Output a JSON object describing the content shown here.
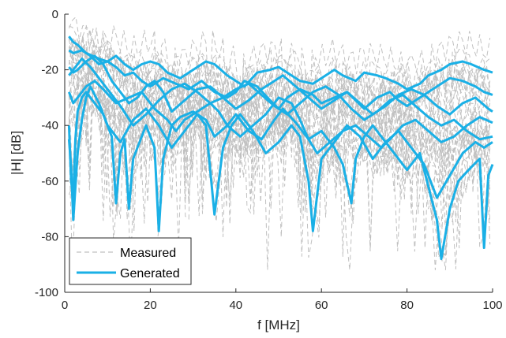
{
  "chart_data": {
    "type": "line",
    "title": "",
    "xlabel": "f [MHz]",
    "ylabel": "|H| [dB]",
    "xlim": [
      0,
      100
    ],
    "ylim": [
      -100,
      0
    ],
    "xticks": [
      0,
      20,
      40,
      60,
      80,
      100
    ],
    "yticks": [
      0,
      -20,
      -40,
      -60,
      -80,
      -100
    ],
    "xtick_labels": [
      "0",
      "20",
      "40",
      "60",
      "80",
      "100"
    ],
    "ytick_labels": [
      "0",
      "-20",
      "-40",
      "-60",
      "-80",
      "-100"
    ],
    "grid": false,
    "legend": {
      "position": "bottom-left",
      "entries": [
        {
          "label": "Measured",
          "style": "dashed",
          "color": "#c0c0c0"
        },
        {
          "label": "Generated",
          "style": "solid",
          "color": "#1ab0e6"
        }
      ]
    },
    "series": [
      {
        "group": "Generated",
        "color": "#1ab0e6",
        "x": [
          1,
          2,
          3,
          5,
          8,
          10,
          12,
          14,
          16,
          18,
          20,
          22,
          24,
          27,
          30,
          33,
          35,
          38,
          40,
          42,
          45,
          48,
          50,
          53,
          55,
          58,
          60,
          63,
          65,
          68,
          70,
          73,
          75,
          78,
          80,
          83,
          85,
          88,
          90,
          93,
          95,
          98,
          100
        ],
        "y": [
          -8,
          -10,
          -11,
          -14,
          -16,
          -17,
          -15,
          -18,
          -20,
          -18,
          -17,
          -18,
          -21,
          -23,
          -20,
          -17,
          -18,
          -22,
          -24,
          -26,
          -21,
          -20,
          -19,
          -22,
          -24,
          -25,
          -23,
          -20,
          -22,
          -24,
          -21,
          -22,
          -23,
          -25,
          -27,
          -25,
          -22,
          -20,
          -18,
          -17,
          -18,
          -20,
          -21
        ]
      },
      {
        "group": "Generated",
        "color": "#1ab0e6",
        "x": [
          1,
          2,
          4,
          6,
          8,
          10,
          12,
          14,
          16,
          18,
          20,
          23,
          26,
          29,
          32,
          35,
          38,
          40,
          42,
          45,
          48,
          50,
          52,
          55,
          58,
          60,
          63,
          66,
          68,
          70,
          73,
          76,
          78,
          80,
          83,
          86,
          88,
          90,
          93,
          96,
          98,
          100
        ],
        "y": [
          -13,
          -14,
          -13,
          -15,
          -18,
          -17,
          -19,
          -22,
          -21,
          -24,
          -26,
          -23,
          -25,
          -27,
          -24,
          -28,
          -30,
          -28,
          -24,
          -26,
          -31,
          -34,
          -30,
          -27,
          -29,
          -32,
          -30,
          -28,
          -31,
          -34,
          -30,
          -28,
          -31,
          -33,
          -30,
          -27,
          -25,
          -23,
          -24,
          -26,
          -28,
          -29
        ]
      },
      {
        "group": "Generated",
        "color": "#1ab0e6",
        "x": [
          1,
          2,
          3,
          5,
          7,
          9,
          11,
          13,
          15,
          17,
          19,
          21,
          23,
          25,
          28,
          31,
          34,
          37,
          40,
          43,
          46,
          49,
          51,
          54,
          57,
          60,
          63,
          66,
          69,
          72,
          75,
          78,
          81,
          84,
          87,
          90,
          93,
          96,
          99,
          100
        ],
        "y": [
          -19,
          -21,
          -20,
          -17,
          -15,
          -18,
          -24,
          -28,
          -32,
          -30,
          -26,
          -24,
          -28,
          -35,
          -31,
          -27,
          -26,
          -30,
          -34,
          -31,
          -27,
          -24,
          -22,
          -26,
          -30,
          -34,
          -31,
          -28,
          -32,
          -36,
          -33,
          -29,
          -27,
          -29,
          -33,
          -36,
          -32,
          -30,
          -34,
          -35
        ]
      },
      {
        "group": "Generated",
        "color": "#1ab0e6",
        "x": [
          1,
          1.5,
          2,
          2.5,
          3,
          4,
          5,
          7,
          9,
          11,
          12,
          13,
          14,
          15,
          16,
          17,
          19,
          21,
          22,
          23,
          25,
          27,
          30,
          33,
          35,
          38,
          40,
          43,
          46,
          49,
          51,
          54,
          57,
          60,
          63,
          65,
          67,
          68,
          70,
          72,
          75,
          78,
          80,
          83,
          85,
          87,
          88,
          90,
          92,
          95,
          97,
          98,
          99,
          100
        ],
        "y": [
          -40,
          -60,
          -66,
          -45,
          -35,
          -30,
          -28,
          -32,
          -36,
          -44,
          -68,
          -50,
          -45,
          -70,
          -52,
          -48,
          -40,
          -48,
          -78,
          -52,
          -40,
          -37,
          -35,
          -38,
          -44,
          -40,
          -36,
          -42,
          -45,
          -38,
          -34,
          -39,
          -45,
          -42,
          -48,
          -54,
          -68,
          -52,
          -44,
          -40,
          -46,
          -52,
          -56,
          -50,
          -62,
          -74,
          -88,
          -70,
          -60,
          -55,
          -52,
          -84,
          -58,
          -54
        ]
      },
      {
        "group": "Generated",
        "color": "#1ab0e6",
        "x": [
          1,
          2,
          3,
          5,
          7,
          9,
          12,
          15,
          18,
          21,
          24,
          26,
          28,
          31,
          34,
          36,
          38,
          41,
          44,
          47,
          50,
          53,
          55,
          57,
          59,
          62,
          65,
          68,
          71,
          74,
          76,
          79,
          82,
          85,
          88,
          91,
          94,
          97,
          100
        ],
        "y": [
          -28,
          -32,
          -30,
          -26,
          -24,
          -27,
          -32,
          -30,
          -28,
          -34,
          -38,
          -42,
          -38,
          -35,
          -32,
          -35,
          -40,
          -44,
          -40,
          -36,
          -30,
          -32,
          -38,
          -45,
          -50,
          -46,
          -42,
          -40,
          -44,
          -48,
          -45,
          -40,
          -38,
          -42,
          -46,
          -44,
          -40,
          -37,
          -39
        ]
      },
      {
        "group": "Generated",
        "color": "#1ab0e6",
        "x": [
          1,
          2,
          4,
          6,
          8,
          10,
          13,
          16,
          19,
          22,
          25,
          28,
          31,
          34,
          37,
          40,
          43,
          46,
          49,
          52,
          55,
          58,
          61,
          64,
          67,
          70,
          73,
          76,
          79,
          82,
          85,
          88,
          91,
          94,
          97,
          100
        ],
        "y": [
          -22,
          -20,
          -16,
          -19,
          -23,
          -27,
          -33,
          -40,
          -36,
          -31,
          -27,
          -25,
          -28,
          -32,
          -30,
          -27,
          -25,
          -29,
          -33,
          -36,
          -32,
          -28,
          -26,
          -29,
          -34,
          -38,
          -35,
          -31,
          -29,
          -33,
          -37,
          -40,
          -38,
          -42,
          -45,
          -44
        ]
      },
      {
        "group": "Generated",
        "color": "#1ab0e6",
        "x": [
          1,
          1.5,
          2,
          3,
          4,
          5,
          6,
          8,
          10,
          13,
          16,
          19,
          22,
          25,
          28,
          31,
          33,
          35,
          37,
          39,
          41,
          44,
          47,
          50,
          53,
          55,
          57,
          58,
          60,
          63,
          66,
          69,
          72,
          75,
          78,
          81,
          84,
          87,
          90,
          93,
          96,
          98,
          100
        ],
        "y": [
          -45,
          -55,
          -74,
          -50,
          -38,
          -30,
          -26,
          -32,
          -40,
          -46,
          -38,
          -34,
          -40,
          -48,
          -42,
          -36,
          -40,
          -72,
          -48,
          -40,
          -36,
          -42,
          -50,
          -46,
          -40,
          -44,
          -60,
          -78,
          -52,
          -46,
          -40,
          -44,
          -52,
          -46,
          -42,
          -48,
          -54,
          -66,
          -58,
          -50,
          -46,
          -48,
          -46
        ]
      }
    ],
    "measured_style": {
      "group": "Measured",
      "color": "#c0c0c0",
      "dash": "6,4",
      "count": 28
    }
  }
}
